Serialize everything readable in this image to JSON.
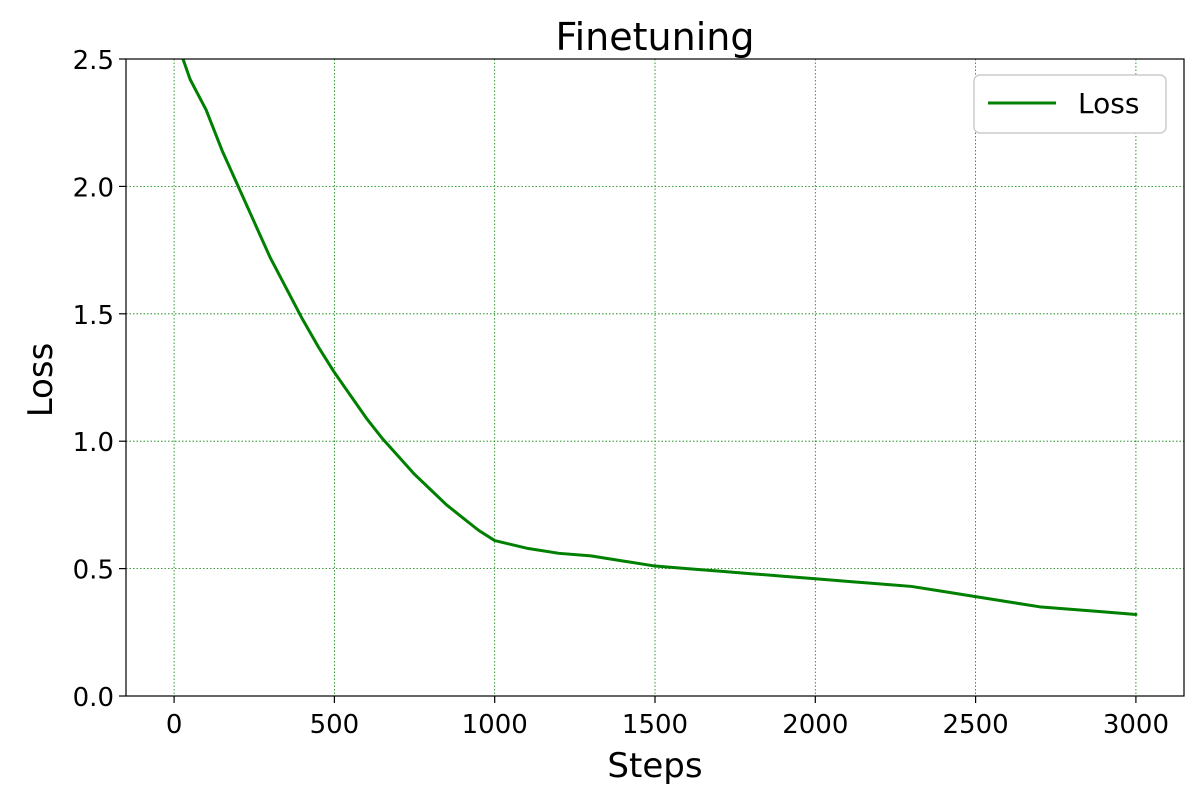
{
  "chart_data": {
    "type": "line",
    "title": "Finetuning",
    "xlabel": "Steps",
    "ylabel": "Loss",
    "xlim": [
      -150,
      3150
    ],
    "ylim": [
      0.0,
      2.5
    ],
    "xticks": [
      0,
      500,
      1000,
      1500,
      2000,
      2500,
      3000
    ],
    "yticks": [
      0.0,
      0.5,
      1.0,
      1.5,
      2.0,
      2.5
    ],
    "xtick_labels": [
      "0",
      "500",
      "1000",
      "1500",
      "2000",
      "2500",
      "3000"
    ],
    "ytick_labels": [
      "0.0",
      "0.5",
      "1.0",
      "1.5",
      "2.0",
      "2.5"
    ],
    "grid": true,
    "grid_color": "#008000",
    "legend_position": "top-right",
    "series": [
      {
        "name": "Loss",
        "color": "#008000",
        "x": [
          0,
          50,
          100,
          150,
          200,
          250,
          300,
          350,
          400,
          450,
          500,
          550,
          600,
          650,
          700,
          750,
          800,
          850,
          900,
          950,
          1000,
          1100,
          1200,
          1300,
          1400,
          1500,
          1600,
          1700,
          1800,
          1900,
          2000,
          2100,
          2200,
          2300,
          2400,
          2500,
          2600,
          2700,
          2800,
          2900,
          3000
        ],
        "y": [
          2.6,
          2.42,
          2.3,
          2.14,
          2.0,
          1.86,
          1.72,
          1.6,
          1.48,
          1.37,
          1.27,
          1.18,
          1.09,
          1.01,
          0.94,
          0.87,
          0.81,
          0.75,
          0.7,
          0.65,
          0.61,
          0.58,
          0.56,
          0.55,
          0.53,
          0.51,
          0.5,
          0.49,
          0.48,
          0.47,
          0.46,
          0.45,
          0.44,
          0.43,
          0.41,
          0.39,
          0.37,
          0.35,
          0.34,
          0.33,
          0.32
        ]
      }
    ]
  }
}
